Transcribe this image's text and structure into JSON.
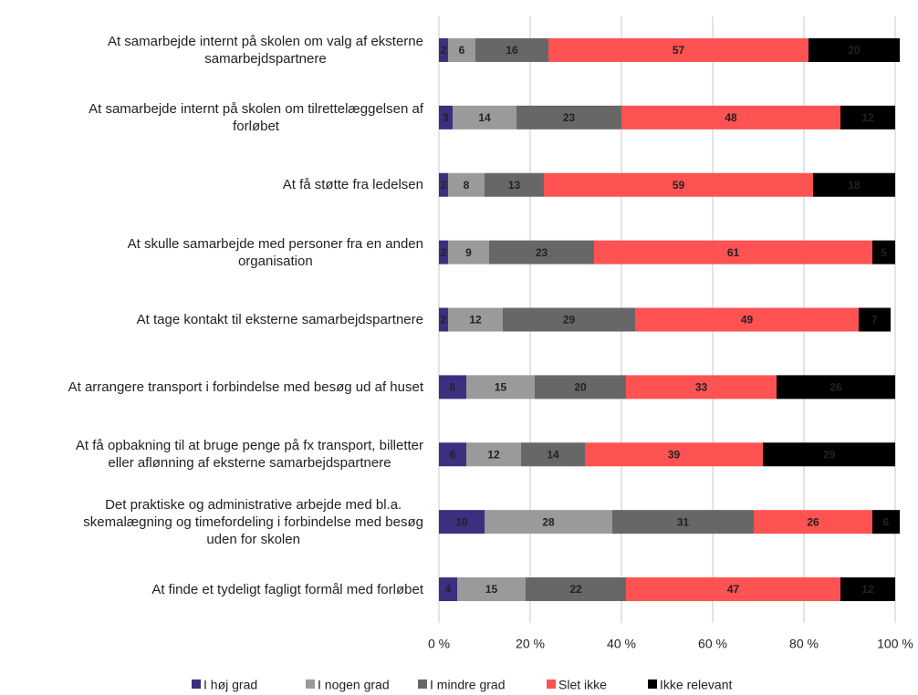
{
  "chart_data": {
    "type": "stacked-barh",
    "categories": [
      "At samarbejde internt på skolen om valg af eksterne\nsamarbejdspartnere",
      "At samarbejde internt på skolen om tilrettelæggelsen af\nforløbet",
      "At få støtte fra ledelsen",
      "At skulle samarbejde med personer fra en anden\norganisation",
      "At tage kontakt til eksterne samarbejdspartnere",
      "At arrangere transport i forbindelse med besøg ud af huset",
      "At få opbakning til at bruge penge på fx transport, billetter\neller aflønning af eksterne samarbejdspartnere",
      "Det praktiske og administrative arbejde med bl.a.\nskemalægning og timefordeling i forbindelse med besøg\nuden for skolen",
      "At finde et tydeligt fagligt formål med forløbet"
    ],
    "series": [
      {
        "name": "I høj grad",
        "color": "#3b2f80",
        "values": [
          2,
          3,
          2,
          2,
          2,
          6,
          6,
          10,
          4
        ]
      },
      {
        "name": "I nogen grad",
        "color": "#9a9a9a",
        "values": [
          6,
          14,
          8,
          9,
          12,
          15,
          12,
          28,
          15
        ]
      },
      {
        "name": "I mindre grad",
        "color": "#676767",
        "values": [
          16,
          23,
          13,
          23,
          29,
          20,
          14,
          31,
          22
        ]
      },
      {
        "name": "Slet ikke",
        "color": "#ff5252",
        "values": [
          57,
          48,
          59,
          61,
          49,
          33,
          39,
          26,
          47
        ]
      },
      {
        "name": "Ikke relevant",
        "color": "#000000",
        "values": [
          20,
          12,
          18,
          5,
          7,
          26,
          29,
          6,
          12
        ]
      }
    ],
    "xlim": [
      0,
      100
    ],
    "xticks": [
      {
        "value": 0,
        "label": "0 %"
      },
      {
        "value": 20,
        "label": "20 %"
      },
      {
        "value": 40,
        "label": "40 %"
      },
      {
        "value": 60,
        "label": "60 %"
      },
      {
        "value": 80,
        "label": "80 %"
      },
      {
        "value": 100,
        "label": "100 %"
      }
    ],
    "grid": true,
    "legend": "bottom"
  }
}
